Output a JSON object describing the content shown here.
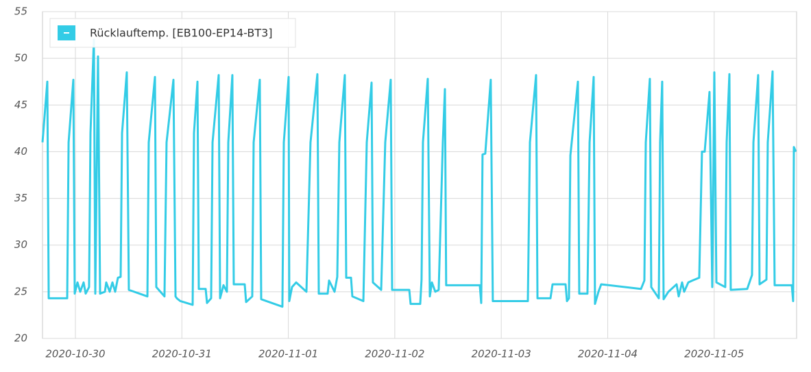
{
  "chart_data": {
    "type": "line",
    "series": [
      {
        "name": "Rücklauftemp. [EB100-EP14-BT3]",
        "color": "#33cce6",
        "x": [
          "2020-10-29T16:35",
          "2020-10-29T17:40",
          "2020-10-29T17:59",
          "2020-10-29T22:09",
          "2020-10-29T22:28",
          "2020-10-29T23:32",
          "2020-10-29T23:51",
          "2020-10-30T00:28",
          "2020-10-30T01:05",
          "2020-10-30T01:51",
          "2020-10-30T02:19",
          "2020-10-30T03:05",
          "2020-10-30T03:24",
          "2020-10-30T04:10",
          "2020-10-30T04:29",
          "2020-10-30T05:06",
          "2020-10-30T05:34",
          "2020-10-30T06:39",
          "2020-10-30T06:57",
          "2020-10-30T07:44",
          "2020-10-30T08:21",
          "2020-10-30T08:58",
          "2020-10-30T09:35",
          "2020-10-30T10:12",
          "2020-10-30T10:31",
          "2020-10-30T11:35",
          "2020-10-30T12:03",
          "2020-10-30T16:14",
          "2020-10-30T16:32",
          "2020-10-30T17:56",
          "2020-10-30T18:14",
          "2020-10-30T20:05",
          "2020-10-30T20:33",
          "2020-10-30T22:06",
          "2020-10-30T22:34",
          "2020-10-30T22:52",
          "2020-10-30T23:39",
          "2020-10-31T02:26",
          "2020-10-31T02:44",
          "2020-10-31T03:31",
          "2020-10-31T03:49",
          "2020-10-31T05:22",
          "2020-10-31T05:40",
          "2020-10-31T06:36",
          "2020-10-31T06:55",
          "2020-10-31T08:18",
          "2020-10-31T08:37",
          "2020-10-31T09:23",
          "2020-10-31T10:09",
          "2020-10-31T10:28",
          "2020-10-31T11:23",
          "2020-10-31T11:42",
          "2020-10-31T14:10",
          "2020-10-31T14:29",
          "2020-10-31T15:52",
          "2020-10-31T16:11",
          "2020-10-31T17:34",
          "2020-10-31T17:53",
          "2020-10-31T22:40",
          "2020-10-31T22:59",
          "2020-11-01T00:04",
          "2020-11-01T00:13",
          "2020-11-01T00:50",
          "2020-11-01T01:46",
          "2020-11-01T04:05",
          "2020-11-01T05:00",
          "2020-11-01T06:33",
          "2020-11-01T06:52",
          "2020-11-01T08:52",
          "2020-11-01T09:11",
          "2020-11-01T10:25",
          "2020-11-01T11:02",
          "2020-11-01T11:30",
          "2020-11-01T12:44",
          "2020-11-01T13:03",
          "2020-11-01T14:08",
          "2020-11-01T14:26",
          "2020-11-01T16:55",
          "2020-11-01T17:41",
          "2020-11-01T18:46",
          "2020-11-01T19:04",
          "2020-11-01T20:56",
          "2020-11-01T21:51",
          "2020-11-01T23:05",
          "2020-11-01T23:24",
          "2020-11-02T03:16",
          "2020-11-02T03:34",
          "2020-11-02T05:44",
          "2020-11-02T06:02",
          "2020-11-02T06:21",
          "2020-11-02T07:26",
          "2020-11-02T07:54",
          "2020-11-02T08:22",
          "2020-11-02T09:08",
          "2020-11-02T09:54",
          "2020-11-02T10:50",
          "2020-11-02T11:18",
          "2020-11-02T11:35",
          "2020-11-02T19:10",
          "2020-11-02T19:29",
          "2020-11-02T19:47",
          "2020-11-02T20:24",
          "2020-11-02T21:38",
          "2020-11-02T22:06",
          "2020-11-03T06:00",
          "2020-11-03T06:28",
          "2020-11-03T07:51",
          "2020-11-03T08:10",
          "2020-11-03T11:06",
          "2020-11-03T11:34",
          "2020-11-03T14:30",
          "2020-11-03T14:49",
          "2020-11-03T15:16",
          "2020-11-03T15:35",
          "2020-11-03T17:17",
          "2020-11-03T17:35",
          "2020-11-03T19:26",
          "2020-11-03T19:55",
          "2020-11-03T20:50",
          "2020-11-03T21:08",
          "2020-11-03T21:55",
          "2020-11-03T22:32",
          "2020-11-04T07:30",
          "2020-11-04T08:16",
          "2020-11-04T08:35",
          "2020-11-04T09:30",
          "2020-11-04T09:49",
          "2020-11-04T11:31",
          "2020-11-04T11:49",
          "2020-11-04T12:17",
          "2020-11-04T12:36",
          "2020-11-04T13:41",
          "2020-11-04T15:32",
          "2020-11-04T16:00",
          "2020-11-04T16:46",
          "2020-11-04T17:14",
          "2020-11-04T18:10",
          "2020-11-04T19:05",
          "2020-11-04T20:38",
          "2020-11-04T21:15",
          "2020-11-04T21:52",
          "2020-11-04T22:57",
          "2020-11-04T23:34",
          "2020-11-05T00:02",
          "2020-11-05T00:30",
          "2020-11-05T02:30",
          "2020-11-05T02:49",
          "2020-11-05T03:26",
          "2020-11-05T03:44",
          "2020-11-05T07:27",
          "2020-11-05T08:32",
          "2020-11-05T08:51",
          "2020-11-05T09:55",
          "2020-11-05T10:14",
          "2020-11-05T11:47",
          "2020-11-05T12:05",
          "2020-11-05T13:10",
          "2020-11-05T13:38",
          "2020-11-05T17:30",
          "2020-11-05T17:48",
          "2020-11-05T17:58",
          "2020-11-05T18:25"
        ],
        "values": [
          41,
          47.5,
          24.3,
          24.3,
          41,
          47.7,
          24.8,
          26,
          25,
          26,
          24.8,
          25.5,
          42,
          52,
          24.8,
          50.2,
          24.8,
          25,
          26,
          25,
          26,
          25,
          26.5,
          26.6,
          42,
          48.5,
          25.2,
          24.5,
          41,
          48,
          25.5,
          24.5,
          41,
          47.7,
          24.5,
          24.3,
          24,
          23.6,
          42,
          47.5,
          25.3,
          25.3,
          23.8,
          24.3,
          41,
          48.2,
          24.3,
          25.7,
          25,
          41,
          48.2,
          25.8,
          25.8,
          23.9,
          24.5,
          41,
          47.7,
          24.2,
          23.4,
          41,
          48,
          24,
          25.5,
          26,
          25,
          41,
          48.3,
          24.8,
          24.8,
          26.2,
          25,
          26.6,
          41,
          48.2,
          26.5,
          26.5,
          24.5,
          24,
          41,
          47.4,
          26,
          25.2,
          41,
          47.7,
          25.2,
          25.2,
          23.7,
          23.7,
          26.3,
          41,
          47.8,
          24.5,
          26,
          25,
          25.2,
          41,
          46.7,
          25.7,
          25.7,
          23.8,
          39.7,
          39.8,
          47.7,
          24,
          24,
          41,
          48.2,
          24.3,
          24.3,
          25.8,
          25.8,
          24,
          24.3,
          39.6,
          47.5,
          24.8,
          24.8,
          41,
          48,
          23.7,
          25,
          25.8,
          25.3,
          26.2,
          41,
          47.8,
          25.5,
          24.3,
          41,
          47.5,
          24.2,
          25,
          25.8,
          24.5,
          26,
          25,
          26,
          26.2,
          26.5,
          40,
          40,
          46.4,
          25.5,
          48.5,
          26,
          25.5,
          41,
          48.3,
          25.2,
          25.3,
          26.8,
          41,
          48.2,
          25.8,
          26.3,
          41,
          48.6,
          25.7,
          25.7,
          24,
          40.5,
          40
        ]
      }
    ],
    "xlim": [
      "2020-10-29T16:35",
      "2020-11-05T18:35"
    ],
    "xticks": [
      "2020-10-30",
      "2020-10-31",
      "2020-11-01",
      "2020-11-02",
      "2020-11-03",
      "2020-11-04",
      "2020-11-05"
    ],
    "ylim": [
      20,
      55
    ],
    "yticks": [
      20,
      25,
      30,
      35,
      40,
      45,
      50,
      55
    ],
    "grid": true
  }
}
